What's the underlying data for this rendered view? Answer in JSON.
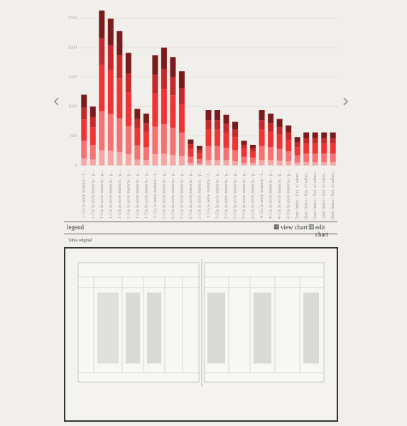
{
  "chart_data": {
    "type": "bar",
    "stacked": true,
    "categories": [
      "1 Cía la serie materia / f...",
      "1 Cía la serie materia / p...",
      "1 Cía la serie materia / p...",
      "1 Cía la serie materia / p...",
      "1 Cía la serie materia / p...",
      "1 Cía la serie materia / p...",
      "1 Cía la serie materia / p...",
      "1 Cía la serie materia / p...",
      "2 Cía la serie materia / f...",
      "2 Cía la serie materia / p...",
      "2 Cía la serie materia / p...",
      "2 Cía la serie materia / p...",
      "2 Cía la serie materia / p...",
      "2 Cía la serie materia / p...",
      "3 Cía la serie materia / f...",
      "3 Cía la serie materia / p...",
      "3 Cía la serie materia / p...",
      "3 Cía la serie materia / p...",
      "3 Cía la serie materia / p...",
      "3 Cía la serie materia / p...",
      "4 Cía la serie materia / f...",
      "4 Cía la serie materia / p...",
      "4 Cía la serie materia / p...",
      "4 Cía la serie materia / p...",
      "Clase única / Est. el saber...",
      "Clase única / Est. el saber...",
      "Clase única / Est. el saber...",
      "Clase única / Est. el saber...",
      "Clase única / Est. el saber..."
    ],
    "series": [
      {
        "color": "#f6a6a4",
        "values": [
          120,
          100,
          260,
          250,
          230,
          190,
          100,
          90,
          190,
          200,
          180,
          160,
          40,
          30,
          90,
          90,
          90,
          70,
          40,
          40,
          90,
          90,
          80,
          70,
          50,
          60,
          60,
          60,
          60
        ]
      },
      {
        "color": "#f47272",
        "values": [
          300,
          250,
          660,
          620,
          570,
          480,
          240,
          220,
          470,
          500,
          460,
          400,
          110,
          80,
          240,
          240,
          210,
          190,
          110,
          90,
          240,
          220,
          200,
          170,
          120,
          140,
          140,
          140,
          140
        ]
      },
      {
        "color": "#ee3434",
        "values": [
          360,
          300,
          790,
          750,
          680,
          570,
          290,
          260,
          560,
          600,
          550,
          480,
          130,
          100,
          280,
          280,
          260,
          220,
          130,
          100,
          280,
          260,
          240,
          200,
          140,
          170,
          170,
          170,
          170
        ]
      },
      {
        "color": "#c42a2b",
        "values": [
          200,
          170,
          450,
          420,
          390,
          320,
          160,
          150,
          320,
          340,
          310,
          270,
          80,
          60,
          160,
          160,
          150,
          130,
          70,
          60,
          160,
          150,
          130,
          120,
          80,
          90,
          90,
          90,
          90
        ]
      },
      {
        "color": "#7c1b1b",
        "values": [
          220,
          180,
          470,
          450,
          410,
          350,
          170,
          160,
          330,
          360,
          340,
          290,
          80,
          60,
          170,
          170,
          150,
          130,
          70,
          60,
          170,
          160,
          140,
          120,
          90,
          100,
          100,
          100,
          100
        ]
      }
    ],
    "ylim": [
      0,
      2700
    ],
    "yticks": [
      0,
      500,
      1000,
      1500,
      2000,
      2500
    ],
    "grid": true
  },
  "legend_bar": {
    "legend": "legend",
    "view": "view chart",
    "edit": "edit chart"
  },
  "original": {
    "title": "Tabla original"
  }
}
